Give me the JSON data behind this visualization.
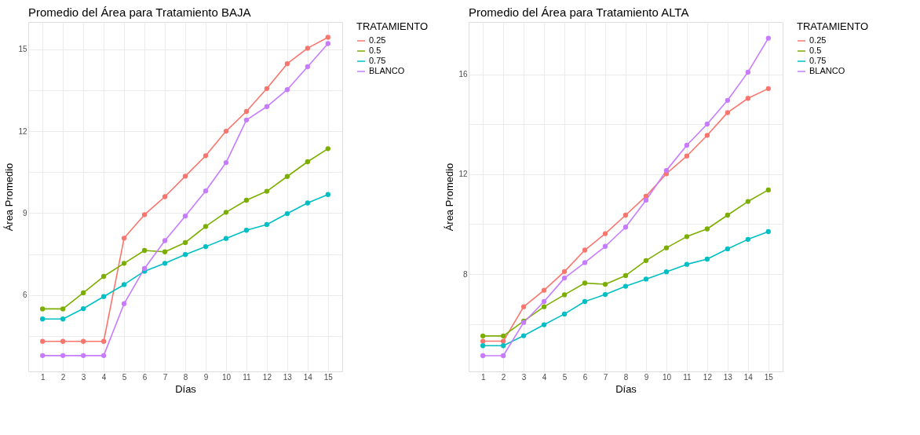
{
  "chart_data": [
    {
      "type": "line",
      "title": "Promedio del Área para Tratamiento BAJA",
      "xlabel": "Días",
      "ylabel": "Área Promedio",
      "legend_title": "TRATAMIENTO",
      "legend": "right",
      "grid": true,
      "marker": "circle",
      "line_style": "solid",
      "x": [
        1,
        2,
        3,
        4,
        5,
        6,
        7,
        8,
        9,
        10,
        11,
        12,
        13,
        14,
        15
      ],
      "xlim": [
        0.3,
        15.7
      ],
      "xticks": [
        1,
        2,
        3,
        4,
        5,
        6,
        7,
        8,
        9,
        10,
        11,
        12,
        13,
        14,
        15
      ],
      "ylim": [
        3.2,
        16.0
      ],
      "yticks": [
        {
          "value": 4.5,
          "label": null
        },
        6,
        {
          "value": 7.5,
          "label": null
        },
        9,
        {
          "value": 10.5,
          "label": null
        },
        12,
        {
          "value": 13.5,
          "label": null
        },
        15
      ],
      "series": [
        {
          "name": "0.25",
          "color": "#F8766D",
          "values": [
            4.3,
            4.3,
            4.3,
            4.3,
            8.08,
            8.94,
            9.6,
            10.35,
            11.1,
            12.0,
            12.72,
            13.56,
            14.47,
            15.04,
            15.44
          ]
        },
        {
          "name": "0.5",
          "color": "#7CAE00",
          "values": [
            5.49,
            5.49,
            6.08,
            6.68,
            7.16,
            7.63,
            7.58,
            7.92,
            8.51,
            9.03,
            9.47,
            9.8,
            10.34,
            10.88,
            11.36
          ]
        },
        {
          "name": "0.75",
          "color": "#00BFC4",
          "values": [
            5.12,
            5.12,
            5.5,
            5.94,
            6.38,
            6.87,
            7.16,
            7.48,
            7.77,
            8.07,
            8.37,
            8.58,
            8.98,
            9.37,
            9.68
          ]
        },
        {
          "name": "BLANCO",
          "color": "#C77CFF",
          "values": [
            3.78,
            3.78,
            3.78,
            3.78,
            5.68,
            6.97,
            7.99,
            8.89,
            9.81,
            10.85,
            12.41,
            12.9,
            13.52,
            14.36,
            15.21
          ]
        }
      ]
    },
    {
      "type": "line",
      "title": "Promedio del Área para Tratamiento ALTA",
      "xlabel": "Días",
      "ylabel": "Área Promedio",
      "legend_title": "TRATAMIENTO",
      "legend": "right",
      "grid": true,
      "marker": "circle",
      "line_style": "solid",
      "x": [
        1,
        2,
        3,
        4,
        5,
        6,
        7,
        8,
        9,
        10,
        11,
        12,
        13,
        14,
        15
      ],
      "xlim": [
        0.3,
        15.7
      ],
      "xticks": [
        1,
        2,
        3,
        4,
        5,
        6,
        7,
        8,
        9,
        10,
        11,
        12,
        13,
        14,
        15
      ],
      "ylim": [
        4.1,
        18.1
      ],
      "yticks": [
        {
          "value": 6,
          "label": null
        },
        8,
        {
          "value": 10,
          "label": null
        },
        12,
        {
          "value": 14,
          "label": null
        },
        16
      ],
      "series": [
        {
          "name": "0.25",
          "color": "#F8766D",
          "values": [
            5.31,
            5.31,
            6.69,
            7.35,
            8.1,
            8.96,
            9.62,
            10.36,
            11.12,
            12.02,
            12.73,
            13.56,
            14.47,
            15.04,
            15.43
          ]
        },
        {
          "name": "0.5",
          "color": "#7CAE00",
          "values": [
            5.52,
            5.52,
            6.12,
            6.69,
            7.17,
            7.64,
            7.59,
            7.94,
            8.54,
            9.05,
            9.5,
            9.81,
            10.36,
            10.91,
            11.37
          ]
        },
        {
          "name": "0.75",
          "color": "#00BFC4",
          "values": [
            5.13,
            5.13,
            5.53,
            5.97,
            6.4,
            6.9,
            7.18,
            7.51,
            7.8,
            8.09,
            8.39,
            8.6,
            9.01,
            9.39,
            9.7
          ]
        },
        {
          "name": "BLANCO",
          "color": "#C77CFF",
          "values": [
            4.73,
            4.73,
            6.06,
            6.9,
            7.84,
            8.46,
            9.11,
            9.88,
            10.96,
            12.15,
            13.16,
            14.01,
            14.96,
            16.09,
            17.45
          ]
        }
      ]
    }
  ]
}
